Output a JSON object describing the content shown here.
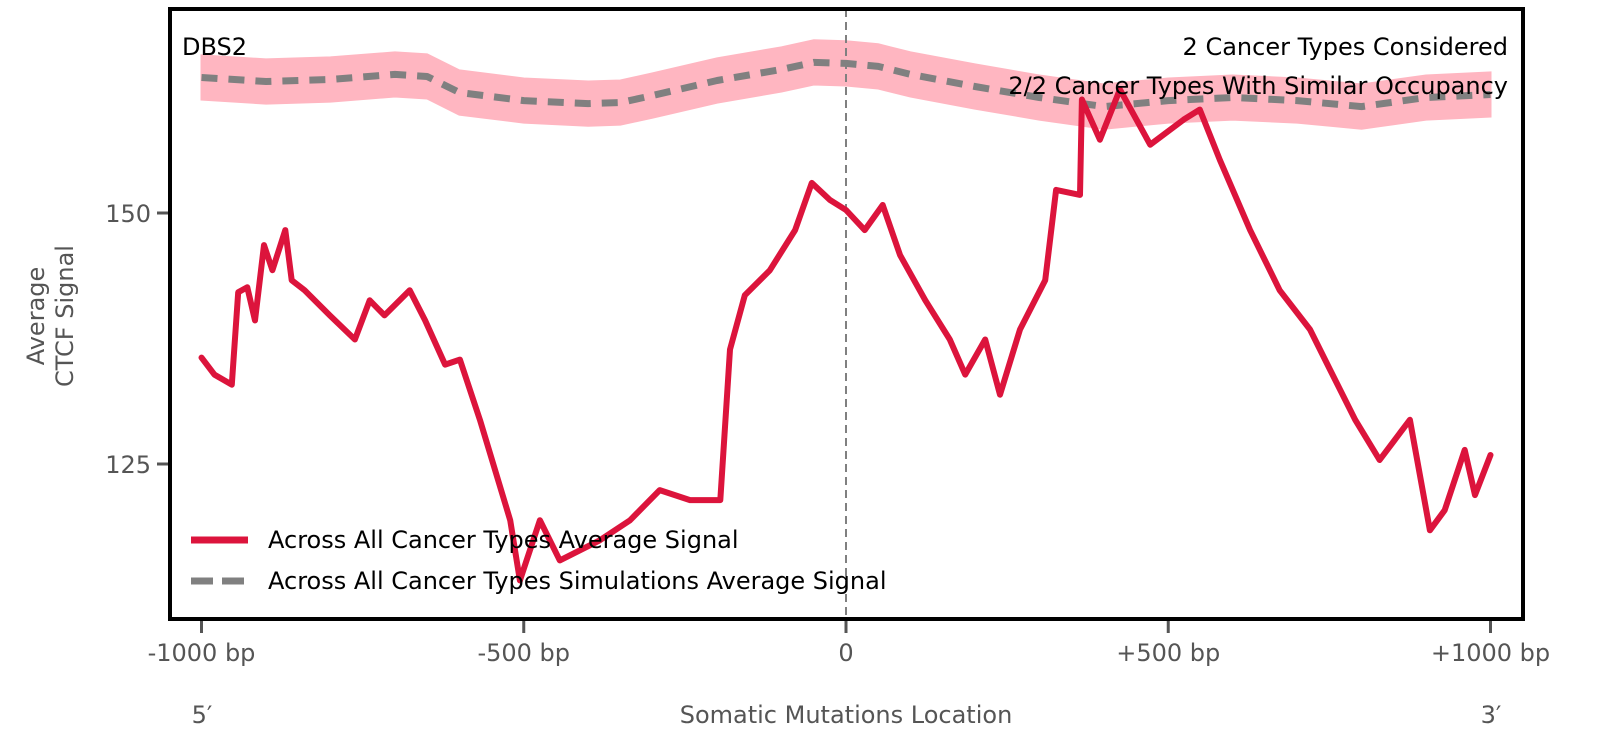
{
  "chart_data": {
    "type": "line",
    "title": "DBS2",
    "xlabel": "Somatic Mutations Location",
    "ylabel_lines": [
      "Average",
      "CTCF Signal"
    ],
    "xlim": [
      -1050,
      1050
    ],
    "ylim": [
      109.6,
      170.4
    ],
    "x_ticks": [
      {
        "value": -1000,
        "label": "-1000 bp"
      },
      {
        "value": -500,
        "label": "-500 bp"
      },
      {
        "value": 0,
        "label": "0"
      },
      {
        "value": 500,
        "label": "+500 bp"
      },
      {
        "value": 1000,
        "label": "+1000 bp"
      }
    ],
    "y_ticks": [
      {
        "value": 125,
        "label": "125"
      },
      {
        "value": 150,
        "label": "150"
      }
    ],
    "end_labels": {
      "left": "5′",
      "right": "3′"
    },
    "annotations": [
      "2 Cancer Types Considered",
      "2/2 Cancer Types With Similar Occupancy"
    ],
    "center_line": 0,
    "legend_position": "lower-left",
    "series": [
      {
        "name": "Across All Cancer Types Average Signal",
        "style": "solid",
        "color": "#dc143c",
        "x": [
          -1000,
          -980,
          -953,
          -943,
          -929,
          -917,
          -903,
          -890,
          -870,
          -860,
          -840,
          -801,
          -762,
          -739,
          -716,
          -677,
          -653,
          -622,
          -599,
          -568,
          -521,
          -506,
          -475,
          -444,
          -382,
          -335,
          -289,
          -242,
          -195,
          -180,
          -157,
          -118,
          -79,
          -53,
          -25,
          0,
          29,
          57,
          84,
          123,
          161,
          185,
          216,
          239,
          270,
          309,
          326,
          363,
          366,
          394,
          425,
          472,
          524,
          549,
          580,
          627,
          673,
          720,
          751,
          790,
          828,
          875,
          906,
          929,
          960,
          976,
          1000
        ],
        "y": [
          135.6,
          133.9,
          132.9,
          142.1,
          142.6,
          139.3,
          146.8,
          144.3,
          148.3,
          143.3,
          142.3,
          139.8,
          137.4,
          141.3,
          139.8,
          142.3,
          139.3,
          134.9,
          135.4,
          129.4,
          119.4,
          113.4,
          119.4,
          115.4,
          117.4,
          119.4,
          122.4,
          121.4,
          121.4,
          136.4,
          141.8,
          144.3,
          148.3,
          153.0,
          151.3,
          150.3,
          148.3,
          150.8,
          145.8,
          141.3,
          137.4,
          133.9,
          137.4,
          131.9,
          138.4,
          143.3,
          152.3,
          151.8,
          161.3,
          157.3,
          162.3,
          156.8,
          159.3,
          160.3,
          155.3,
          148.3,
          142.3,
          138.4,
          134.4,
          129.4,
          125.4,
          129.4,
          118.4,
          120.4,
          126.4,
          121.9,
          125.9
        ]
      },
      {
        "name": "Across All Cancer Types Simulations Average Signal",
        "style": "dashed",
        "color": "#808080",
        "band_color": "#ffb6c1",
        "band_halfwidth": 2.2,
        "x": [
          -1000,
          -900,
          -800,
          -700,
          -650,
          -600,
          -500,
          -400,
          -350,
          -300,
          -200,
          -100,
          -50,
          0,
          50,
          100,
          200,
          300,
          400,
          500,
          600,
          700,
          800,
          900,
          1000
        ],
        "y": [
          163.5,
          163.1,
          163.3,
          163.8,
          163.6,
          162.0,
          161.2,
          160.9,
          161.0,
          161.7,
          163.2,
          164.3,
          165.0,
          164.9,
          164.6,
          163.8,
          162.6,
          161.5,
          160.6,
          161.2,
          161.5,
          161.2,
          160.6,
          161.5,
          161.8
        ]
      }
    ]
  }
}
